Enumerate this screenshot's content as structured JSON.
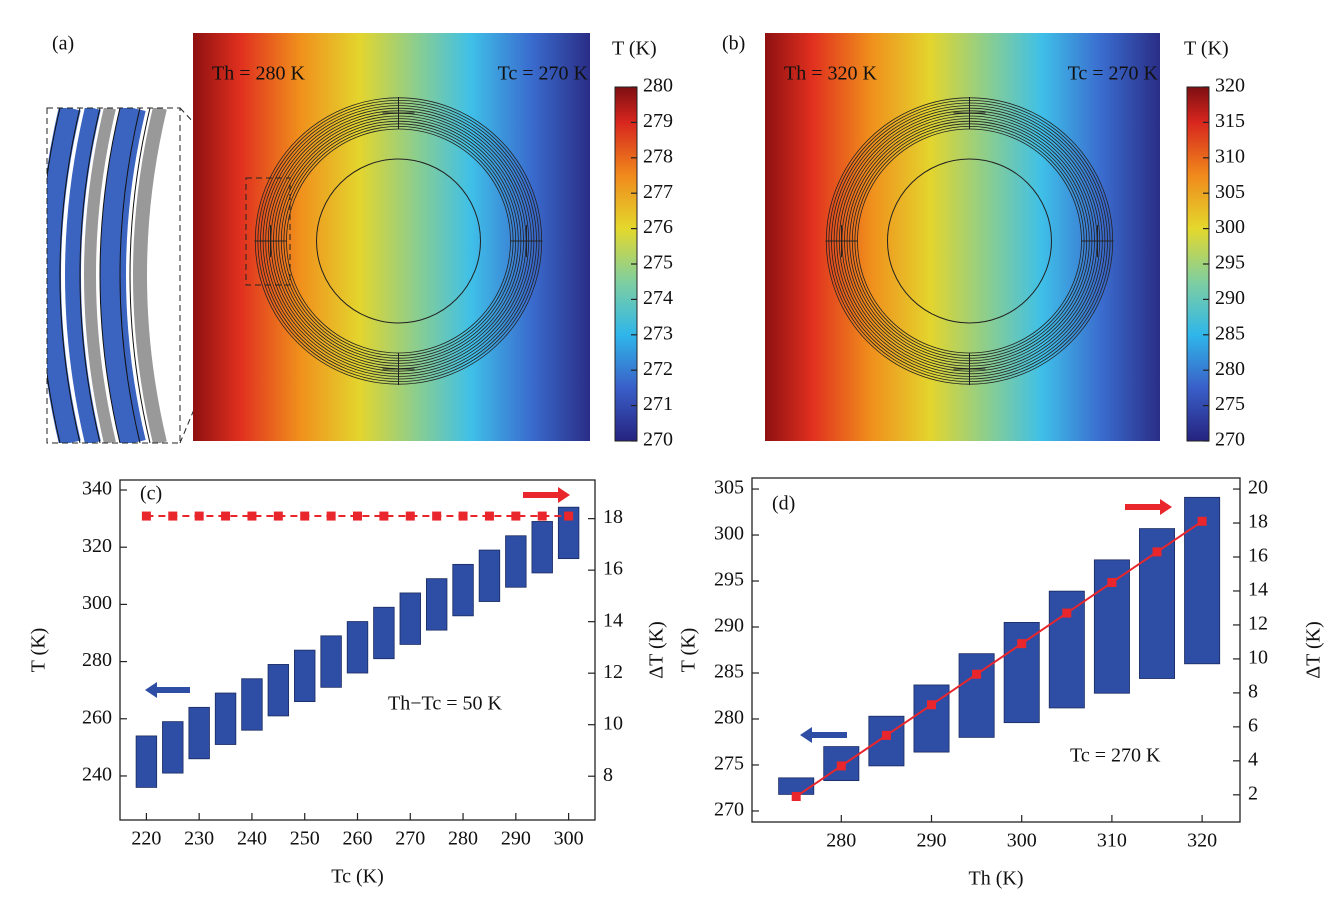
{
  "chart_data": [
    {
      "type": "heatmap",
      "label": "(a)",
      "colorbar_title": "T (K)",
      "annotations": [
        "Th = 280 K",
        "Tc = 270 K"
      ],
      "clim": [
        270,
        280
      ],
      "cticks": [
        270,
        271,
        272,
        273,
        274,
        275,
        276,
        277,
        278,
        279,
        280
      ]
    },
    {
      "type": "heatmap",
      "label": "(b)",
      "colorbar_title": "T (K)",
      "annotations": [
        "Th = 320 K",
        "Tc = 270 K"
      ],
      "clim": [
        270,
        320
      ],
      "cticks": [
        270,
        275,
        280,
        285,
        290,
        295,
        300,
        305,
        310,
        315,
        320
      ]
    },
    {
      "type": "floating-bar",
      "label": "(c)",
      "annotation": "Th−Tc = 50 K",
      "xlabel": "Tc (K)",
      "ylabel": "T (K)",
      "y2label": "ΔT (K)",
      "x": [
        220,
        225,
        230,
        235,
        240,
        245,
        250,
        255,
        260,
        265,
        270,
        275,
        280,
        285,
        290,
        295,
        300
      ],
      "series": [
        {
          "color": "#2e4ea6",
          "low": [
            236,
            241,
            246,
            251,
            256,
            261,
            266,
            271,
            276,
            281,
            286,
            291,
            296,
            301,
            306,
            311,
            316
          ],
          "high": [
            254,
            259,
            264,
            269,
            274,
            279,
            284,
            289,
            294,
            299,
            304,
            309,
            314,
            319,
            324,
            329,
            334
          ]
        },
        {
          "color": "#e8262b",
          "axis": "y2",
          "line_style": "dashed",
          "values": [
            18.1,
            18.1,
            18.1,
            18.1,
            18.1,
            18.1,
            18.1,
            18.1,
            18.1,
            18.1,
            18.1,
            18.1,
            18.1,
            18.1,
            18.1,
            18.1,
            18.1
          ]
        }
      ],
      "xlim": [
        215,
        305
      ],
      "ylim": [
        224.6,
        343.5
      ],
      "y2lim": [
        6.3,
        19.5
      ],
      "xticks": [
        220,
        230,
        240,
        250,
        260,
        270,
        280,
        290,
        300
      ],
      "yticks": [
        240,
        260,
        280,
        300,
        320,
        340
      ],
      "y2ticks": [
        8,
        10,
        12,
        14,
        16,
        18
      ]
    },
    {
      "type": "floating-bar",
      "label": "(d)",
      "annotation": "Tc = 270 K",
      "xlabel": "Th (K)",
      "ylabel": "T (K)",
      "y2label": "ΔT (K)",
      "x": [
        275,
        280,
        285,
        290,
        295,
        300,
        305,
        310,
        315,
        320
      ],
      "series": [
        {
          "color": "#2e4ea6",
          "low": [
            271.8,
            273.3,
            274.9,
            276.4,
            278.0,
            279.6,
            281.2,
            282.8,
            284.4,
            286.0
          ],
          "high": [
            273.6,
            277.0,
            280.3,
            283.7,
            287.1,
            290.5,
            293.9,
            297.3,
            300.7,
            304.1
          ]
        },
        {
          "color": "#e8262b",
          "axis": "y2",
          "line_style": "solid",
          "values": [
            1.9,
            3.7,
            5.5,
            7.3,
            9.1,
            10.9,
            12.7,
            14.5,
            16.3,
            18.1
          ]
        }
      ],
      "xlim": [
        270.1,
        324.2
      ],
      "ylim": [
        268.8,
        306.2
      ],
      "y2lim": [
        0.4,
        20.65
      ],
      "xticks": [
        280,
        290,
        300,
        310,
        320
      ],
      "yticks": [
        270,
        275,
        280,
        285,
        290,
        295,
        300,
        305
      ],
      "y2ticks": [
        2,
        4,
        6,
        8,
        10,
        12,
        14,
        16,
        18,
        20
      ]
    }
  ]
}
